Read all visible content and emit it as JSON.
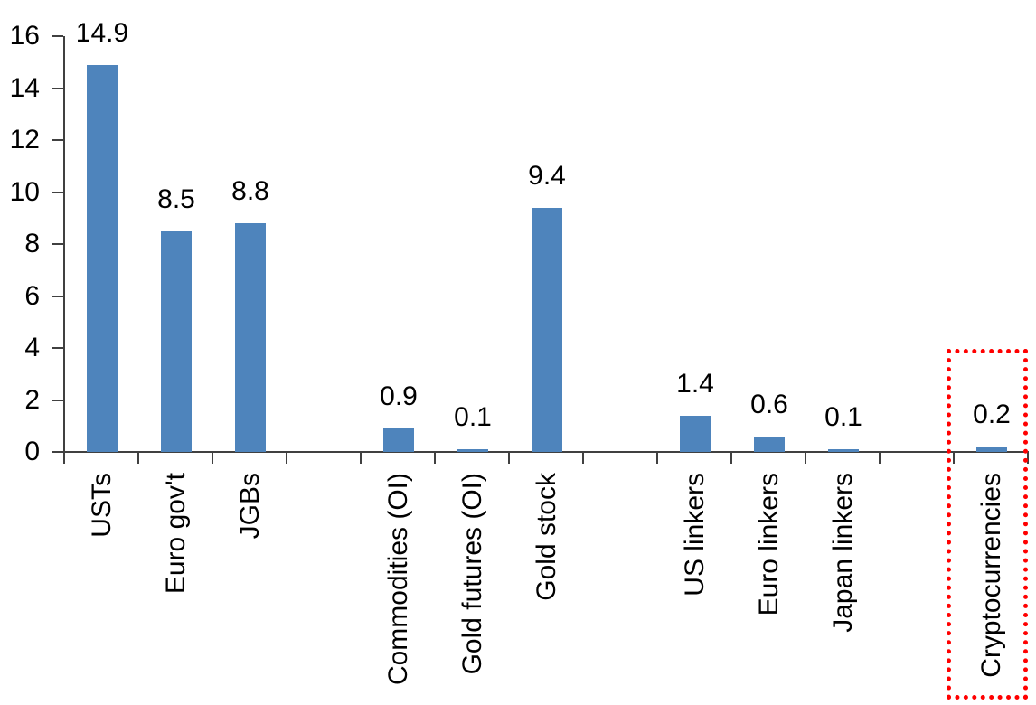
{
  "chart_data": {
    "type": "bar",
    "title": "",
    "xlabel": "",
    "ylabel": "",
    "grid": "off",
    "legend": "none",
    "categories": [
      "USTs",
      "Euro gov't",
      "JGBs",
      "Commodities (OI)",
      "Gold futures (OI)",
      "Gold stock",
      "US linkers",
      "Euro linkers",
      "Japan linkers",
      "Cryptocurrencies"
    ],
    "values": [
      14.9,
      8.5,
      8.8,
      0.9,
      0.1,
      9.4,
      1.4,
      0.6,
      0.1,
      0.2
    ],
    "data_labels": [
      "14.9",
      "8.5",
      "8.8",
      "0.9",
      "0.1",
      "9.4",
      "1.4",
      "0.6",
      "0.1",
      "0.2"
    ],
    "slot_indices": [
      0,
      1,
      2,
      4,
      5,
      6,
      8,
      9,
      10,
      12
    ],
    "total_slots": 13,
    "ylim": [
      0,
      16
    ],
    "yticks": [
      0,
      2,
      4,
      6,
      8,
      10,
      12,
      14,
      16
    ],
    "bar_color": "#4E84BC",
    "axis_color": "#404040",
    "text_color": "#000000",
    "highlight": {
      "category": "Cryptocurrencies",
      "shape": "dotted-rectangle",
      "color": "#FF0000"
    }
  }
}
